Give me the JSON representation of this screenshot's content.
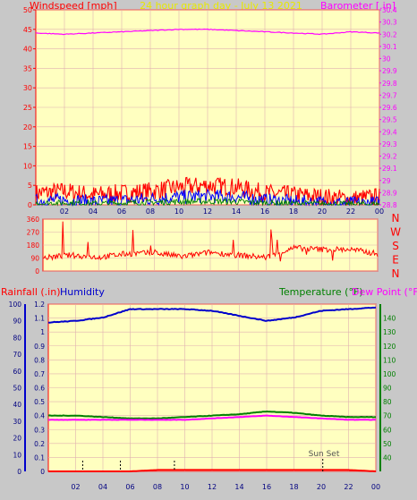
{
  "header": {
    "left_title": "Windspeed [mph]",
    "center_title": "24 hour graph day - July 13 2021",
    "right_title": "Barometer [.in]"
  },
  "colors": {
    "background": "#c8c8c8",
    "plot_bg": "#ffffc0",
    "grid": "#e0b0b0",
    "wind_speed": "#ff0000",
    "wind_gust": "#0000ff",
    "wind_avg": "#008000",
    "barometer": "#ff00ff",
    "direction": "#ff0000",
    "rainfall": "#ff0000",
    "humidity": "#0000cc",
    "temperature": "#008000",
    "dew_point": "#ff00ff",
    "center_title": "#e8e800"
  },
  "x_ticks": [
    "02",
    "04",
    "06",
    "08",
    "10",
    "12",
    "14",
    "16",
    "18",
    "20",
    "22",
    "00"
  ],
  "direction_labels": [
    "N",
    "W",
    "S",
    "E",
    "N"
  ],
  "panel3_labels": {
    "rainfall": "Rainfall (.in)",
    "humidity": "Humidity",
    "temperature": "Temperature (°F)",
    "dew_point": "Dew Point (°F)",
    "sunset": "Sun Set"
  },
  "chart_data": [
    {
      "type": "line",
      "left_axis": {
        "label": "Windspeed [mph]",
        "ylim": [
          0,
          50
        ],
        "ticks": [
          "0",
          "5",
          "10",
          "15",
          "20",
          "25",
          "30",
          "35",
          "40",
          "45",
          "50"
        ]
      },
      "right_axis": {
        "label": "Barometer [.in]",
        "ylim": [
          28.8,
          30.4
        ],
        "ticks": [
          "28.8",
          "28.9",
          "29",
          "29.1",
          "29.2",
          "29.3",
          "29.4",
          "29.5",
          "29.6",
          "29.7",
          "29.8",
          "29.9",
          "30",
          "30.1",
          "30.2",
          "30.3",
          "30.4"
        ]
      },
      "x": [
        "00",
        "02",
        "04",
        "06",
        "08",
        "10",
        "12",
        "14",
        "16",
        "18",
        "20",
        "22",
        "00"
      ],
      "series": [
        {
          "axis": "left",
          "values": [
            3,
            3.5,
            2.5,
            3,
            3.5,
            4.5,
            5,
            4.5,
            3,
            2.5,
            2,
            1.5,
            2
          ]
        },
        {
          "axis": "left",
          "values": [
            1,
            1.2,
            0.8,
            1,
            1.5,
            2,
            2.2,
            2,
            1.2,
            0.8,
            0.6,
            0.4,
            0.5
          ]
        },
        {
          "axis": "right",
          "values": [
            30.21,
            30.2,
            30.21,
            30.22,
            30.23,
            30.24,
            30.24,
            30.23,
            30.22,
            30.21,
            30.2,
            30.22,
            30.21
          ]
        }
      ],
      "grid": true
    },
    {
      "type": "line",
      "left_axis": {
        "ylim": [
          0,
          360
        ],
        "ticks": [
          "0",
          "90",
          "180",
          "270",
          "360"
        ]
      },
      "x": [
        "00",
        "02",
        "04",
        "06",
        "08",
        "10",
        "12",
        "14",
        "16",
        "18",
        "20",
        "22",
        "00"
      ],
      "series": [
        {
          "values": [
            90,
            110,
            95,
            120,
            125,
            100,
            130,
            110,
            95,
            160,
            150,
            150,
            120
          ]
        }
      ],
      "grid": true
    },
    {
      "type": "line",
      "left_axis": {
        "label": "Rainfall (.in)",
        "ylim": [
          0,
          1.2
        ],
        "ticks": [
          "0",
          "0.1",
          "0.2",
          "0.3",
          "0.4",
          "0.5",
          "0.6",
          "0.7",
          "0.8",
          "0.9",
          "1",
          "1.1",
          "1.2"
        ]
      },
      "left_axis2": {
        "label": "Humidity",
        "ylim": [
          0,
          100
        ],
        "ticks": [
          "0",
          "10",
          "20",
          "30",
          "40",
          "50",
          "60",
          "70",
          "80",
          "90",
          "100"
        ]
      },
      "right_axis": {
        "label": "Temperature (°F)",
        "ylim": [
          30,
          150
        ],
        "ticks": [
          "40",
          "50",
          "60",
          "70",
          "80",
          "90",
          "100",
          "110",
          "120",
          "130",
          "140"
        ]
      },
      "x": [
        "00",
        "02",
        "04",
        "06",
        "08",
        "10",
        "12",
        "14",
        "16",
        "18",
        "20",
        "22",
        "00"
      ],
      "series": [
        {
          "axis": "humidity",
          "values": [
            89,
            90,
            92,
            97,
            97,
            97,
            96,
            93,
            90,
            92,
            96,
            97,
            98
          ]
        },
        {
          "axis": "right",
          "values": [
            70,
            70,
            69,
            68,
            68,
            69,
            70,
            71,
            73,
            72,
            70,
            69,
            69
          ]
        },
        {
          "axis": "right",
          "values": [
            67,
            67,
            67,
            67,
            67,
            67,
            68,
            69,
            70,
            69,
            68,
            67,
            67
          ]
        },
        {
          "axis": "rain",
          "values": [
            0,
            0,
            0,
            0,
            0.01,
            0.01,
            0.01,
            0.01,
            0.01,
            0.01,
            0.01,
            0.01,
            0
          ]
        }
      ],
      "grid": true
    }
  ]
}
